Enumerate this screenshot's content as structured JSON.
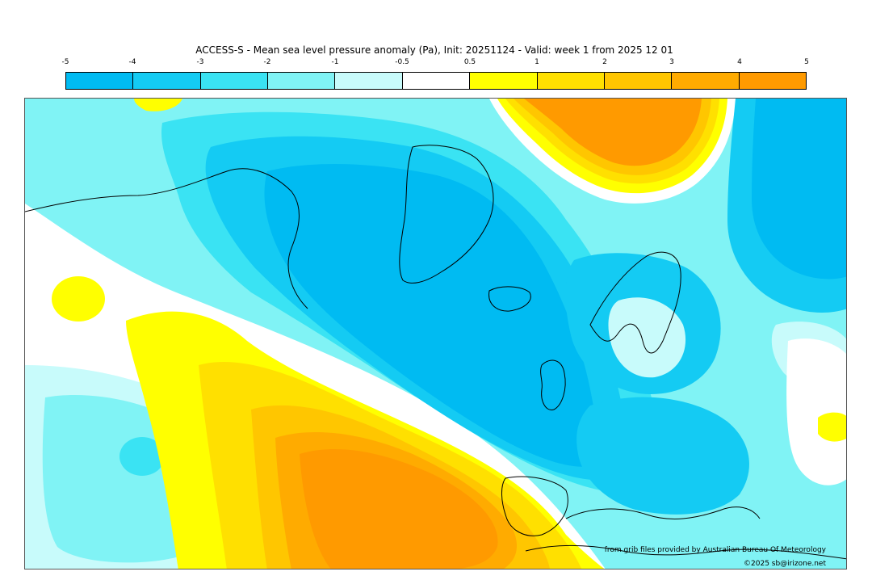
{
  "title": "ACCESS-S - Mean sea level pressure anomaly (Pa), Init: 20251124 - Valid: week 1 from 2025 12 01",
  "colorbar": {
    "ticks": [
      "-5",
      "-4",
      "-3",
      "-2",
      "-1",
      "-0.5",
      "0.5",
      "1",
      "2",
      "3",
      "4",
      "5"
    ],
    "colors": [
      "#00bbf2",
      "#14cbf3",
      "#3ae3f3",
      "#80f3f5",
      "#c8fbfb",
      "#ffffff",
      "#ffff00",
      "#ffe000",
      "#ffc600",
      "#ffab00",
      "#ff9a00"
    ]
  },
  "map": {
    "palette": {
      "minus1": "#c8fbfb",
      "minus2": "#80f3f5",
      "minus3": "#3ae3f3",
      "minus4": "#14cbf3",
      "minus5": "#00bbf2",
      "neutral": "#ffffff",
      "plus05": "#ffff00",
      "plus1": "#ffe000",
      "plus2": "#ffc600",
      "plus3": "#ffab00",
      "plus4": "#ff9a00",
      "coast": "#000000",
      "border": "#999999"
    }
  },
  "credits": {
    "source": "from grib files provided by Australian Bureau Of Meteorology",
    "copyright": "©2025 sb@irizone.net"
  }
}
